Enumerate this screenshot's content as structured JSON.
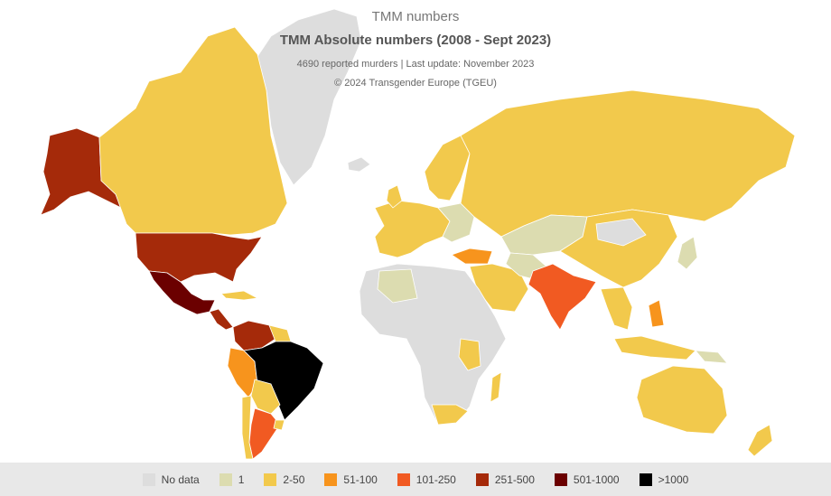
{
  "header": {
    "title": "TMM numbers",
    "subtitle": "TMM Absolute numbers (2008 - Sept 2023)",
    "info": "4690 reported murders | Last update: November 2023",
    "credit": "© 2024 Transgender Europe (TGEU)"
  },
  "legend": [
    {
      "label": "No data",
      "color": "#dddddd"
    },
    {
      "label": "1",
      "color": "#dcdcb0"
    },
    {
      "label": "2-50",
      "color": "#f2c94c"
    },
    {
      "label": "51-100",
      "color": "#f7941d"
    },
    {
      "label": "101-250",
      "color": "#f15a22"
    },
    {
      "label": "251-500",
      "color": "#a52a0a"
    },
    {
      "label": "501-1000",
      "color": "#6b0000"
    },
    {
      "label": ">1000",
      "color": "#000000"
    }
  ]
}
